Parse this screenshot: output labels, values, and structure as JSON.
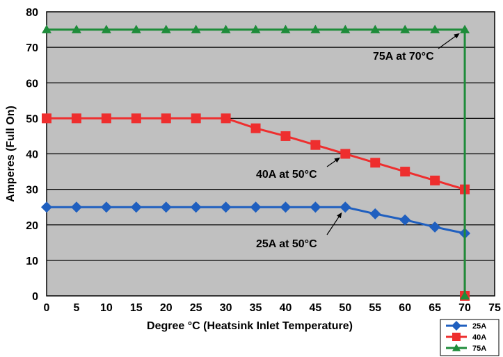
{
  "chart_data": {
    "type": "line",
    "xlabel": "Degree °C (Heatsink Inlet Temperature)",
    "ylabel": "Amperes (Full On)",
    "xlim": [
      0,
      75
    ],
    "ylim": [
      0,
      80
    ],
    "x_ticks": [
      0,
      5,
      10,
      15,
      20,
      25,
      30,
      35,
      40,
      45,
      50,
      55,
      60,
      65,
      70,
      75
    ],
    "y_ticks": [
      0,
      10,
      20,
      30,
      40,
      50,
      60,
      70,
      80
    ],
    "grid": "horizontal",
    "background": "#c0c0c0",
    "legend_position": "bottom-right",
    "series": [
      {
        "name": "25A",
        "color": "#1f5fbf",
        "marker": "diamond",
        "x": [
          0,
          5,
          10,
          15,
          20,
          25,
          30,
          35,
          40,
          45,
          50,
          55,
          60,
          65,
          70
        ],
        "y": [
          25,
          25,
          25,
          25,
          25,
          25,
          25,
          25,
          25,
          25,
          25,
          23.1,
          21.4,
          19.4,
          17.6
        ]
      },
      {
        "name": "40A",
        "color": "#ee2e2e",
        "marker": "square",
        "x": [
          0,
          5,
          10,
          15,
          20,
          25,
          30,
          35,
          40,
          45,
          50,
          55,
          60,
          65,
          70,
          70
        ],
        "y": [
          50,
          50,
          50,
          50,
          50,
          50,
          50,
          47.2,
          45,
          42.5,
          40,
          37.5,
          35,
          32.5,
          30,
          0
        ]
      },
      {
        "name": "75A",
        "color": "#1e8c3a",
        "marker": "triangle",
        "x": [
          0,
          5,
          10,
          15,
          20,
          25,
          30,
          35,
          40,
          45,
          50,
          55,
          60,
          65,
          70,
          70
        ],
        "y": [
          75,
          75,
          75,
          75,
          75,
          75,
          75,
          75,
          75,
          75,
          75,
          75,
          75,
          75,
          75,
          0
        ]
      }
    ],
    "annotations": [
      {
        "text": "75A at 70°C",
        "x": 70,
        "y": 75
      },
      {
        "text": "40A at 50°C",
        "x": 50,
        "y": 40
      },
      {
        "text": "25A at 50°C",
        "x": 50,
        "y": 25
      }
    ]
  }
}
